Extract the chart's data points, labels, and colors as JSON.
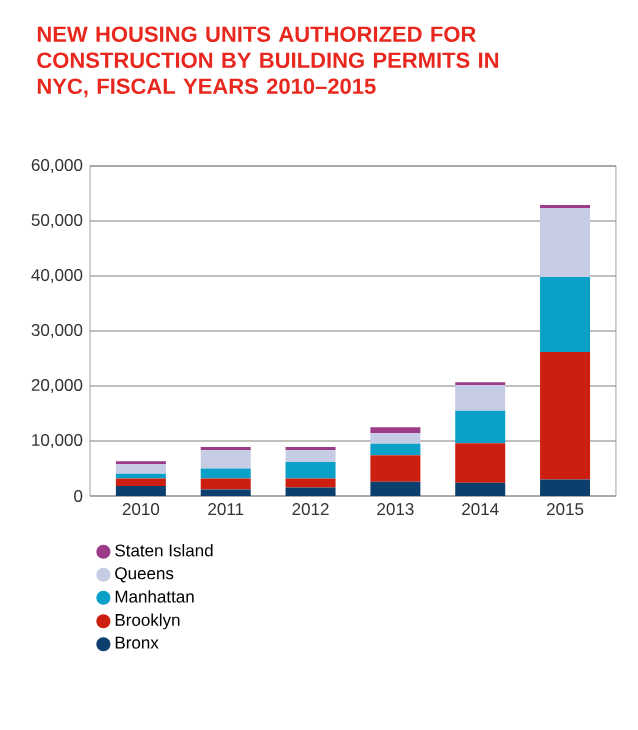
{
  "chart_data": {
    "type": "bar",
    "stacked": true,
    "title": "NEW HOUSING UNITS AUTHORIZED FOR CONSTRUCTION BY BUILDING PERMITS IN NYC, FISCAL YEARS 2010–2015",
    "categories": [
      "2010",
      "2011",
      "2012",
      "2013",
      "2014",
      "2015"
    ],
    "series": [
      {
        "name": "Bronx",
        "color": "#0d3f6e",
        "values": [
          1800,
          1200,
          1550,
          2600,
          2400,
          3000
        ]
      },
      {
        "name": "Brooklyn",
        "color": "#cc1f10",
        "values": [
          1400,
          2000,
          1650,
          4800,
          7200,
          23200
        ]
      },
      {
        "name": "Manhattan",
        "color": "#0aa0c8",
        "values": [
          850,
          1800,
          3000,
          2100,
          5900,
          13600
        ]
      },
      {
        "name": "Queens",
        "color": "#c5cce3",
        "values": [
          1750,
          3300,
          2100,
          1900,
          4700,
          12500
        ]
      },
      {
        "name": "Staten Island",
        "color": "#9c3b87",
        "values": [
          500,
          600,
          600,
          1100,
          500,
          600
        ]
      }
    ],
    "ylim": [
      0,
      60000
    ],
    "yticks": [
      0,
      {
        "value": 10000,
        "label": "10,000"
      },
      {
        "value": 20000,
        "label": "20,000"
      },
      {
        "value": 30000,
        "label": "30,000"
      },
      {
        "value": 40000,
        "label": "40,000"
      },
      {
        "value": 50000,
        "label": "50,000"
      },
      {
        "value": 60000,
        "label": "60,000"
      }
    ],
    "grid": "y",
    "legend": "bottom"
  }
}
